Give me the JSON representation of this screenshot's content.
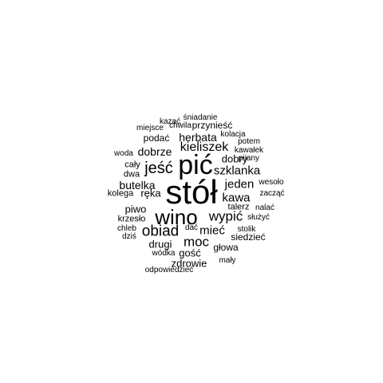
{
  "cloud": {
    "text_color": "#000000",
    "background": "#ffffff",
    "words": [
      "kazać",
      "śniadanie",
      "miejsce",
      "chwila",
      "przynieść",
      "kolacja",
      "herbata",
      "podać",
      "potem",
      "kieliszek",
      "kawałek",
      "woda",
      "dobrze",
      "pijany",
      "pić",
      "cały",
      "jeść",
      "dobry",
      "szklanka",
      "dwa",
      "stół",
      "jeden",
      "wesoło",
      "butelka",
      "kolega",
      "ręka",
      "kawa",
      "zacząć",
      "piwo",
      "nalać",
      "talerz",
      "wino",
      "wypić",
      "krzesło",
      "służyć",
      "obiad",
      "mieć",
      "chleb",
      "dać",
      "stolik",
      "dziś",
      "moc",
      "siedzieć",
      "drugi",
      "głowa",
      "gość",
      "wódka",
      "zdrowie",
      "mały",
      "odpowiedzieć"
    ]
  }
}
